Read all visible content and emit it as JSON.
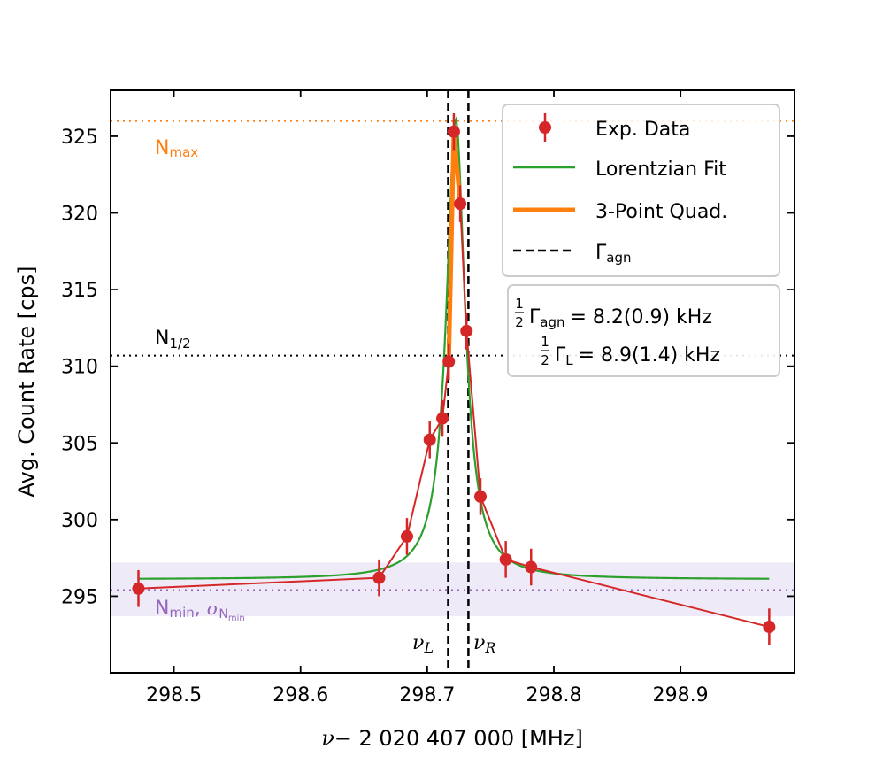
{
  "chart_data": {
    "type": "scatter",
    "title": "",
    "xlabel_nu": "ν",
    "xlabel_rest": "− 2 020 407 000 [MHz]",
    "ylabel": "Avg. Count Rate [cps]",
    "xlim": [
      298.45,
      298.99
    ],
    "ylim": [
      290.0,
      328.0
    ],
    "xticks": [
      298.5,
      298.6,
      298.7,
      298.8,
      298.9
    ],
    "xtick_labels": [
      "298.5",
      "298.6",
      "298.7",
      "298.8",
      "298.9"
    ],
    "yticks": [
      295,
      300,
      305,
      310,
      315,
      320,
      325
    ],
    "ytick_labels": [
      "295",
      "300",
      "305",
      "310",
      "315",
      "320",
      "325"
    ],
    "series": [
      {
        "name": "Exp. Data",
        "color": "#d62728",
        "x": [
          298.472,
          298.662,
          298.684,
          298.702,
          298.712,
          298.717,
          298.721,
          298.726,
          298.731,
          298.742,
          298.762,
          298.782,
          298.97
        ],
        "y": [
          295.5,
          296.2,
          298.9,
          305.2,
          306.6,
          310.3,
          325.3,
          320.6,
          312.3,
          301.5,
          297.4,
          296.9,
          293.0
        ],
        "yerr": [
          1.2,
          1.2,
          1.2,
          1.2,
          1.2,
          1.2,
          1.2,
          1.2,
          1.2,
          1.2,
          1.2,
          1.2,
          1.2
        ]
      },
      {
        "name": "Lorentzian Fit",
        "color": "#2ca02c",
        "baseline": 296.1,
        "amplitude": 30.0,
        "center": 298.7225,
        "hwhm": 0.0089,
        "x_range": [
          298.472,
          298.97
        ]
      },
      {
        "name": "3-Point Quad.",
        "color": "#ff7f0e",
        "x": [
          298.717,
          298.721,
          298.726
        ],
        "y": [
          310.3,
          325.3,
          320.6
        ]
      },
      {
        "name": "Γagn",
        "color": "#000000",
        "lines_x": [
          298.7165,
          298.7325
        ]
      }
    ],
    "reference_lines": {
      "n_max": {
        "y": 326.0,
        "label": "N",
        "sub": "max",
        "color": "#ff7f0e"
      },
      "n_half": {
        "y": 310.7,
        "label": "N",
        "sub": "1/2",
        "color": "#000000"
      },
      "n_min": {
        "y": 295.4,
        "band": [
          293.7,
          297.2
        ],
        "label": "N",
        "sub": "min",
        "sigma_sub": "N",
        "sigma_subsub": "min",
        "color": "#9467bd",
        "band_color": "#efeaf7"
      }
    },
    "vline_labels": [
      {
        "text": "ν",
        "sub": "L"
      },
      {
        "text": "ν",
        "sub": "R"
      }
    ],
    "legend": {
      "position": "top-right",
      "entries": [
        {
          "label": "Exp. Data"
        },
        {
          "label": "Lorentzian Fit"
        },
        {
          "label": "3-Point Quad."
        },
        {
          "label": "Γ",
          "sub": "agn"
        }
      ]
    },
    "annotation": {
      "line1_sub": "agn",
      "line1_value": "= 8.2(0.9) kHz",
      "line2_sub": "L",
      "line2_value": "= 8.9(1.4) kHz"
    }
  }
}
